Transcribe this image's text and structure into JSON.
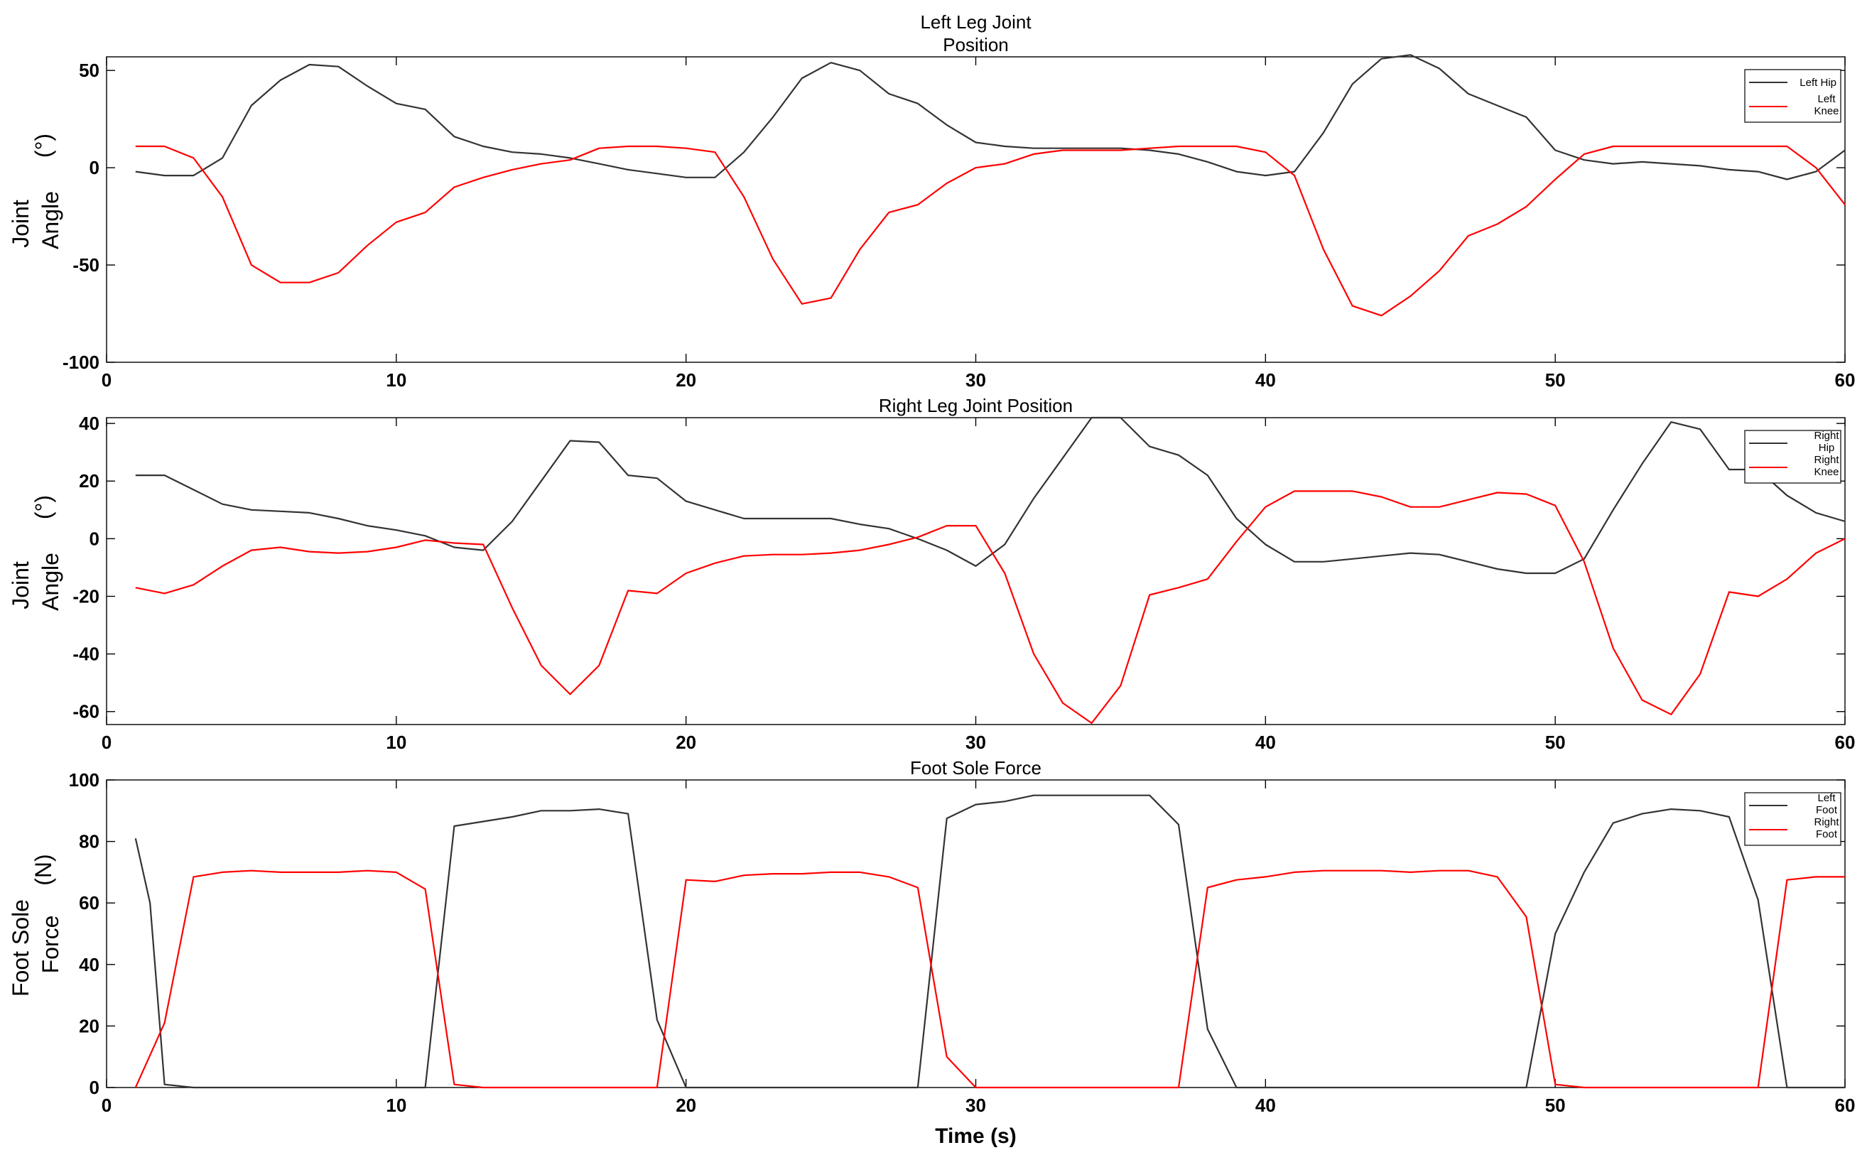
{
  "chart_data": [
    {
      "type": "line",
      "title": [
        "Left Leg Joint",
        "Position"
      ],
      "ylabel": [
        "Joint",
        "Angle",
        "(°)"
      ],
      "xlabel": "",
      "xlim": [
        0,
        60
      ],
      "ylim": [
        -100,
        57
      ],
      "xticks": [
        0,
        10,
        20,
        30,
        40,
        50,
        60
      ],
      "yticks": [
        -100,
        -50,
        0,
        50
      ],
      "legend_position": "top-right",
      "series": [
        {
          "name": [
            "Left Hip"
          ],
          "color": "#333333",
          "x": [
            1,
            2,
            3,
            4,
            5,
            6,
            7,
            8,
            9,
            10,
            11,
            12,
            13,
            14,
            15,
            16,
            17,
            18,
            19,
            20,
            21,
            22,
            23,
            24,
            25,
            26,
            27,
            28,
            29,
            30,
            31,
            32,
            33,
            34,
            35,
            36,
            37,
            38,
            39,
            40,
            41,
            42,
            43,
            44,
            45,
            46,
            47,
            48,
            49,
            50,
            51,
            52,
            53,
            54,
            55,
            56,
            57,
            58,
            59,
            60
          ],
          "y": [
            -2,
            -4,
            -4,
            5,
            32,
            45,
            53,
            52,
            42,
            33,
            30,
            16,
            11,
            8,
            7,
            5,
            2,
            -1,
            -3,
            -5,
            -5,
            8,
            26,
            46,
            54,
            50,
            38,
            33,
            22,
            13,
            11,
            10,
            10,
            10,
            10,
            9,
            7,
            3,
            -2,
            -4,
            -2,
            18,
            43,
            56,
            58,
            51,
            38,
            32,
            26,
            9,
            4,
            2,
            3,
            2,
            1,
            -1,
            -2,
            -6,
            -2,
            9
          ]
        },
        {
          "name": [
            "Left",
            "Knee"
          ],
          "color": "#ff0000",
          "x": [
            1,
            2,
            3,
            4,
            5,
            6,
            7,
            8,
            9,
            10,
            11,
            12,
            13,
            14,
            15,
            16,
            17,
            18,
            19,
            20,
            21,
            22,
            23,
            24,
            25,
            26,
            27,
            28,
            29,
            30,
            31,
            32,
            33,
            34,
            35,
            36,
            37,
            38,
            39,
            40,
            41,
            42,
            43,
            44,
            45,
            46,
            47,
            48,
            49,
            50,
            51,
            52,
            53,
            54,
            55,
            56,
            57,
            58,
            59,
            60
          ],
          "y": [
            11,
            11,
            5,
            -15,
            -50,
            -59,
            -59,
            -54,
            -40,
            -28,
            -23,
            -10,
            -5,
            -1,
            2,
            4,
            10,
            11,
            11,
            10,
            8,
            -15,
            -47,
            -70,
            -67,
            -42,
            -23,
            -19,
            -8,
            0,
            2,
            7,
            9,
            9,
            9,
            10,
            11,
            11,
            11,
            8,
            -4,
            -42,
            -71,
            -76,
            -66,
            -53,
            -35,
            -29,
            -20,
            -6,
            7,
            11,
            11,
            11,
            11,
            11,
            11,
            11,
            0,
            -19
          ]
        }
      ]
    },
    {
      "type": "line",
      "title": [
        "Right Leg Joint Position"
      ],
      "ylabel": [
        "Joint",
        "Angle",
        "(°)"
      ],
      "xlabel": "",
      "xlim": [
        0,
        60
      ],
      "ylim": [
        -64.5,
        42
      ],
      "xticks": [
        0,
        10,
        20,
        30,
        40,
        50,
        60
      ],
      "yticks": [
        -60,
        -40,
        -20,
        0,
        20,
        40
      ],
      "legend_position": "top-right",
      "series": [
        {
          "name": [
            "Right",
            "Hip"
          ],
          "color": "#333333",
          "x": [
            1,
            2,
            3,
            4,
            5,
            6,
            7,
            8,
            9,
            10,
            11,
            12,
            13,
            14,
            15,
            16,
            17,
            18,
            19,
            20,
            21,
            22,
            23,
            24,
            25,
            26,
            27,
            28,
            29,
            30,
            31,
            32,
            33,
            34,
            35,
            36,
            37,
            38,
            39,
            40,
            41,
            42,
            43,
            44,
            45,
            46,
            47,
            48,
            49,
            50,
            51,
            52,
            53,
            54,
            55,
            56,
            57,
            58,
            59,
            60
          ],
          "y": [
            22,
            22,
            17,
            12,
            10,
            9.5,
            9,
            7,
            4.5,
            3,
            1,
            -3,
            -4,
            6,
            20,
            34,
            33.5,
            22,
            21,
            13,
            10,
            7,
            7,
            7,
            7,
            5,
            3.5,
            0,
            -4,
            -9.5,
            -2,
            14,
            28,
            42,
            42,
            32,
            29,
            22,
            7,
            -2,
            -8,
            -8,
            -7,
            -6,
            -5,
            -5.5,
            -8,
            -10.5,
            -12,
            -12,
            -7,
            10,
            26,
            40.5,
            38,
            24,
            24,
            15,
            9,
            6
          ]
        },
        {
          "name": [
            "Right",
            "Knee"
          ],
          "color": "#ff0000",
          "x": [
            1,
            2,
            3,
            4,
            5,
            6,
            7,
            8,
            9,
            10,
            11,
            12,
            13,
            14,
            15,
            16,
            17,
            18,
            19,
            20,
            21,
            22,
            23,
            24,
            25,
            26,
            27,
            28,
            29,
            30,
            31,
            32,
            33,
            34,
            35,
            36,
            37,
            38,
            39,
            40,
            41,
            42,
            43,
            44,
            45,
            46,
            47,
            48,
            49,
            50,
            51,
            52,
            53,
            54,
            55,
            56,
            57,
            58,
            59,
            60
          ],
          "y": [
            -17,
            -19,
            -16,
            -9.5,
            -4,
            -3,
            -4.5,
            -5,
            -4.5,
            -3,
            -0.5,
            -1.5,
            -2,
            -24,
            -44,
            -54,
            -44,
            -18,
            -19,
            -12,
            -8.5,
            -6,
            -5.5,
            -5.5,
            -5,
            -4,
            -2,
            0.5,
            4.5,
            4.5,
            -12,
            -40,
            -57,
            -64,
            -51,
            -19.5,
            -17,
            -14,
            -1,
            11,
            16.5,
            16.5,
            16.5,
            14.5,
            11,
            11,
            13.5,
            16,
            15.5,
            11.5,
            -8,
            -38,
            -56,
            -61,
            -47,
            -18.5,
            -20,
            -14,
            -5,
            0
          ]
        }
      ]
    },
    {
      "type": "line",
      "title": [
        "Foot Sole Force"
      ],
      "ylabel": [
        "Foot Sole",
        "Force",
        "(N)"
      ],
      "xlabel": "Time (s)",
      "xlim": [
        0,
        60
      ],
      "ylim": [
        0,
        100
      ],
      "xticks": [
        0,
        10,
        20,
        30,
        40,
        50,
        60
      ],
      "yticks": [
        0,
        20,
        40,
        60,
        80,
        100
      ],
      "legend_position": "top-right",
      "series": [
        {
          "name": [
            "Left",
            "Foot"
          ],
          "color": "#333333",
          "x": [
            1,
            1.5,
            2,
            3,
            4,
            5,
            6,
            7,
            8,
            9,
            10,
            11,
            12,
            13,
            14,
            15,
            16,
            17,
            18,
            19,
            20,
            21,
            22,
            23,
            24,
            25,
            26,
            27,
            28,
            29,
            30,
            31,
            32,
            33,
            34,
            35,
            36,
            37,
            38,
            39,
            40,
            41,
            42,
            43,
            44,
            45,
            46,
            47,
            48,
            49,
            50,
            51,
            52,
            53,
            54,
            55,
            56,
            57,
            58,
            59,
            60
          ],
          "y": [
            81,
            60,
            1,
            0,
            0,
            0,
            0,
            0,
            0,
            0,
            0,
            0,
            85,
            86.5,
            88,
            90,
            90,
            90.5,
            89,
            22,
            0,
            0,
            0,
            0,
            0,
            0,
            0,
            0,
            0,
            87.5,
            92,
            93,
            95,
            95,
            95,
            95,
            95,
            85.5,
            19,
            0,
            0,
            0,
            0,
            0,
            0,
            0,
            0,
            0,
            0,
            0,
            50,
            70,
            86,
            89,
            90.5,
            90,
            88,
            61,
            0,
            0,
            0
          ]
        },
        {
          "name": [
            "Right",
            "Foot"
          ],
          "color": "#ff0000",
          "x": [
            1,
            2,
            3,
            4,
            5,
            6,
            7,
            8,
            9,
            10,
            11,
            12,
            13,
            14,
            15,
            16,
            17,
            18,
            19,
            20,
            21,
            22,
            23,
            24,
            25,
            26,
            27,
            28,
            29,
            30,
            31,
            32,
            33,
            34,
            35,
            36,
            37,
            38,
            39,
            40,
            41,
            42,
            43,
            44,
            45,
            46,
            47,
            48,
            49,
            50,
            51,
            52,
            53,
            54,
            55,
            56,
            57,
            58,
            59,
            60
          ],
          "y": [
            0,
            21,
            68.5,
            70,
            70.5,
            70,
            70,
            70,
            70.5,
            70,
            64.5,
            1,
            0,
            0,
            0,
            0,
            0,
            0,
            0,
            67.5,
            67,
            69,
            69.5,
            69.5,
            70,
            70,
            68.5,
            65,
            10,
            0,
            0,
            0,
            0,
            0,
            0,
            0,
            0,
            65,
            67.5,
            68.5,
            70,
            70.5,
            70.5,
            70.5,
            70,
            70.5,
            70.5,
            68.5,
            55.5,
            1,
            0,
            0,
            0,
            0,
            0,
            0,
            0,
            67.5,
            68.5,
            68.5
          ]
        }
      ]
    }
  ]
}
